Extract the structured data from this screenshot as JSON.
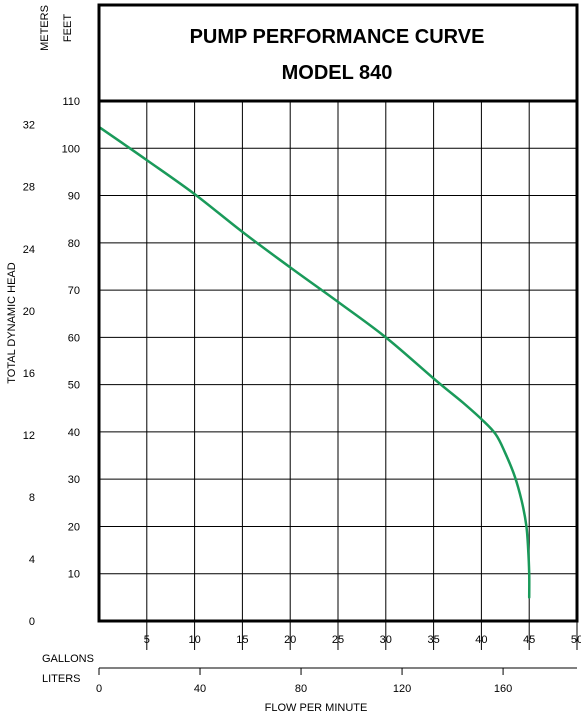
{
  "chart_data": {
    "type": "line",
    "title": "PUMP PERFORMANCE CURVE",
    "subtitle": "MODEL 840",
    "xlabel": "FLOW PER MINUTE",
    "ylabel": "TOTAL DYNAMIC HEAD",
    "grid": true,
    "x_primary": {
      "unit": "GALLONS",
      "range": [
        0,
        50
      ],
      "ticks": [
        "5",
        "10",
        "15",
        "20",
        "25",
        "30",
        "35",
        "40",
        "45",
        "50"
      ],
      "tick_values": [
        5,
        10,
        15,
        20,
        25,
        30,
        35,
        40,
        45,
        50
      ]
    },
    "x_secondary": {
      "unit": "LITERS",
      "ticks": [
        "0",
        "40",
        "80",
        "120",
        "160"
      ],
      "tick_values": [
        0,
        40,
        80,
        120,
        160
      ]
    },
    "y_primary": {
      "unit": "FEET",
      "range": [
        0,
        110
      ],
      "ticks": [
        "110",
        "100",
        "90",
        "80",
        "70",
        "60",
        "50",
        "40",
        "30",
        "20",
        "10"
      ],
      "tick_values": [
        110,
        100,
        90,
        80,
        70,
        60,
        50,
        40,
        30,
        20,
        10
      ]
    },
    "y_secondary": {
      "unit": "METERS",
      "ticks": [
        "32",
        "28",
        "24",
        "20",
        "16",
        "12",
        "8",
        "4",
        "0"
      ],
      "tick_values": [
        32,
        28,
        24,
        20,
        16,
        12,
        8,
        4,
        0
      ]
    },
    "series": [
      {
        "color": "#1a9a5a",
        "x": [
          0,
          5,
          10,
          15,
          20,
          25,
          30,
          35,
          38,
          40,
          41.5,
          42.5,
          43.5,
          44.2,
          44.7,
          44.9,
          45.0,
          45.0
        ],
        "y": [
          104.5,
          97.5,
          90.3,
          82.3,
          74.8,
          67.5,
          60,
          51.3,
          46.3,
          42.7,
          39.5,
          35.5,
          30.5,
          25.5,
          20.2,
          15,
          10,
          5
        ]
      }
    ]
  }
}
